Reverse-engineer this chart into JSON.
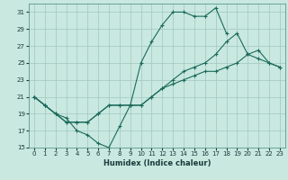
{
  "xlabel": "Humidex (Indice chaleur)",
  "background_color": "#c8e8e0",
  "grid_color": "#a0c8c0",
  "line_color": "#1a6a5a",
  "xlim": [
    -0.5,
    23.5
  ],
  "ylim": [
    15,
    32
  ],
  "yticks": [
    15,
    17,
    19,
    21,
    23,
    25,
    27,
    29,
    31
  ],
  "xticks": [
    0,
    1,
    2,
    3,
    4,
    5,
    6,
    7,
    8,
    9,
    10,
    11,
    12,
    13,
    14,
    15,
    16,
    17,
    18,
    19,
    20,
    21,
    22,
    23
  ],
  "line1_x": [
    0,
    1,
    2,
    3,
    4,
    5,
    6,
    7,
    8,
    9,
    10,
    11,
    12,
    13,
    14,
    15,
    16,
    17,
    18,
    19,
    20,
    21,
    22,
    23
  ],
  "line1_y": [
    21,
    20,
    19,
    18.5,
    17,
    16.5,
    15.5,
    15,
    17.5,
    20,
    25,
    27.5,
    29.5,
    31,
    31,
    30.5,
    30.5,
    31.5,
    28.5,
    null,
    null,
    null,
    null,
    null
  ],
  "line2_x": [
    0,
    1,
    2,
    3,
    4,
    5,
    6,
    7,
    8,
    9,
    10,
    11,
    12,
    13,
    14,
    15,
    16,
    17,
    18,
    19,
    20,
    21,
    22,
    23
  ],
  "line2_y": [
    21,
    20,
    19,
    18,
    18,
    18,
    19,
    20,
    20,
    20,
    20,
    21,
    22,
    22.5,
    23,
    23.5,
    24,
    24,
    24.5,
    25,
    26,
    26.5,
    25,
    24.5
  ],
  "line3_x": [
    0,
    1,
    2,
    3,
    4,
    5,
    6,
    7,
    8,
    9,
    10,
    11,
    12,
    13,
    14,
    15,
    16,
    17,
    18,
    19,
    20,
    21,
    22,
    23
  ],
  "line3_y": [
    21,
    20,
    19,
    18,
    18,
    18,
    19,
    20,
    20,
    20,
    20,
    21,
    22,
    23,
    24,
    24.5,
    25,
    26,
    27.5,
    28.5,
    26,
    25.5,
    25,
    24.5
  ]
}
